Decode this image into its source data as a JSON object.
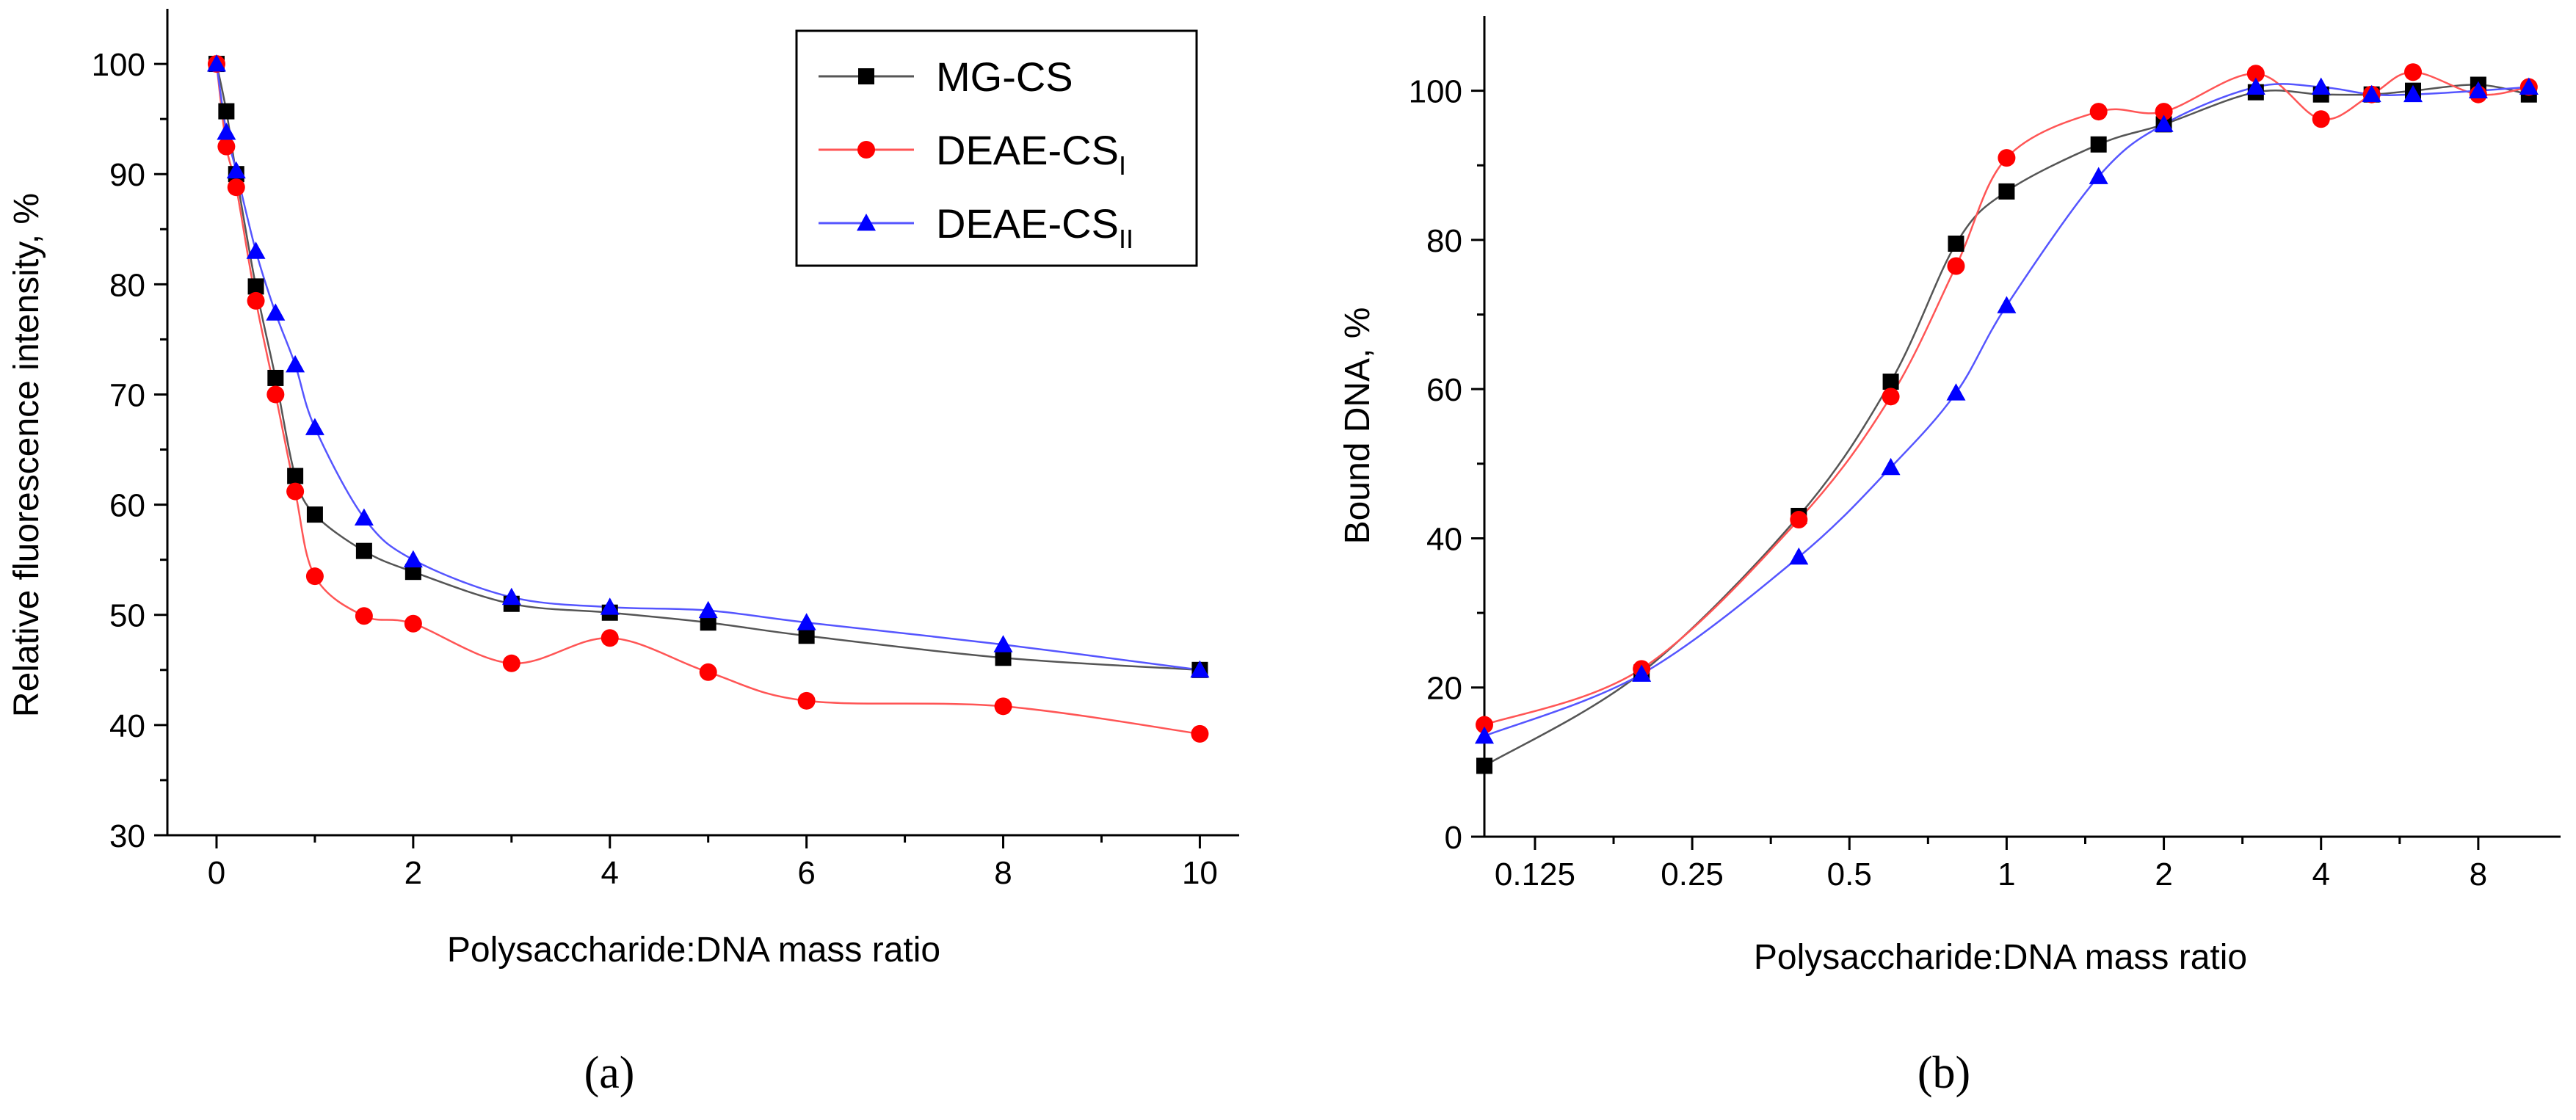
{
  "chart_data": [
    {
      "type": "line",
      "panel_label": "(a)",
      "xlabel": "Polysaccharide:DNA mass ratio",
      "ylabel": "Relative fluorescence intensity, %",
      "xlim": [
        -0.5,
        10.4
      ],
      "ylim": [
        30,
        105
      ],
      "xscale": "linear",
      "xticks": [
        0,
        2,
        4,
        6,
        8,
        10
      ],
      "xtick_labels": [
        "0",
        "2",
        "4",
        "6",
        "8",
        "10"
      ],
      "yticks": [
        30,
        40,
        50,
        60,
        70,
        80,
        90,
        100
      ],
      "ytick_labels": [
        "30",
        "40",
        "50",
        "60",
        "70",
        "80",
        "90",
        "100"
      ],
      "grid": false,
      "legend": "top-right",
      "series": [
        {
          "name": "MG-CS",
          "label_main": "MG-CS",
          "label_sub": "",
          "color": "#000000",
          "line_color": "#555555",
          "marker": "square",
          "x": [
            0,
            0.1,
            0.2,
            0.4,
            0.6,
            0.8,
            1,
            1.5,
            2,
            3,
            4,
            5,
            6,
            8,
            10
          ],
          "y": [
            100,
            95.7,
            90.0,
            79.8,
            71.5,
            62.6,
            59.1,
            55.8,
            53.9,
            51.0,
            50.2,
            49.3,
            48.1,
            46.1,
            45.0
          ]
        },
        {
          "name": "DEAE-CSI",
          "label_main": "DEAE-CS",
          "label_sub": "I",
          "color": "#ff0000",
          "line_color": "#ff5555",
          "marker": "circle",
          "x": [
            0,
            0.1,
            0.2,
            0.4,
            0.6,
            0.8,
            1,
            1.5,
            2,
            3,
            4,
            5,
            6,
            8,
            10
          ],
          "y": [
            100,
            92.5,
            88.8,
            78.5,
            70.0,
            61.2,
            53.5,
            49.9,
            49.2,
            45.6,
            47.9,
            44.8,
            42.2,
            41.7,
            39.2
          ]
        },
        {
          "name": "DEAE-CSII",
          "label_main": "DEAE-CS",
          "label_sub": "II",
          "color": "#0000ff",
          "line_color": "#5555ff",
          "marker": "triangle",
          "x": [
            0,
            0.1,
            0.2,
            0.4,
            0.6,
            0.8,
            1,
            1.5,
            2,
            3,
            4,
            5,
            6,
            8,
            10
          ],
          "y": [
            100,
            93.8,
            90.3,
            83.0,
            77.4,
            72.7,
            67.0,
            58.8,
            55.0,
            51.6,
            50.7,
            50.4,
            49.3,
            47.3,
            45.0
          ]
        }
      ]
    },
    {
      "type": "line",
      "panel_label": "(b)",
      "xlabel": "Polysaccharide:DNA mass ratio",
      "ylabel": "Bound DNA, %",
      "xlim": [
        0.1,
        11.5
      ],
      "ylim": [
        0,
        110
      ],
      "xscale": "log",
      "xticks": [
        0.125,
        0.25,
        0.5,
        1,
        2,
        4,
        8
      ],
      "xtick_labels": [
        "0.125",
        "0.25",
        "0.5",
        "1",
        "2",
        "4",
        "8"
      ],
      "yticks": [
        0,
        20,
        40,
        60,
        80,
        100
      ],
      "ytick_labels": [
        "0",
        "20",
        "40",
        "60",
        "80",
        "100"
      ],
      "grid": false,
      "legend": "none",
      "series": [
        {
          "name": "MG-CS",
          "color": "#000000",
          "line_color": "#555555",
          "marker": "square",
          "x": [
            0.1,
            0.2,
            0.4,
            0.6,
            0.8,
            1,
            1.5,
            2,
            3,
            4,
            5,
            6,
            8,
            10
          ],
          "y": [
            9.5,
            22.0,
            43.0,
            61.0,
            79.5,
            86.5,
            92.8,
            95.5,
            99.8,
            99.5,
            99.5,
            100.0,
            100.8,
            99.5
          ]
        },
        {
          "name": "DEAE-CSI",
          "color": "#ff0000",
          "line_color": "#ff5555",
          "marker": "circle",
          "x": [
            0.1,
            0.2,
            0.4,
            0.6,
            0.8,
            1,
            1.5,
            2,
            3,
            4,
            5,
            6,
            8,
            10
          ],
          "y": [
            15.0,
            22.5,
            42.5,
            59.0,
            76.5,
            91.0,
            97.2,
            97.2,
            102.3,
            96.2,
            99.5,
            102.5,
            99.5,
            100.5
          ]
        },
        {
          "name": "DEAE-CSII",
          "color": "#0000ff",
          "line_color": "#5555ff",
          "marker": "triangle",
          "x": [
            0.1,
            0.2,
            0.4,
            0.6,
            0.8,
            1,
            1.5,
            2,
            3,
            4,
            5,
            6,
            8,
            10
          ],
          "y": [
            13.5,
            21.8,
            37.5,
            49.5,
            59.5,
            71.2,
            88.5,
            95.5,
            100.5,
            100.5,
            99.5,
            99.5,
            100.0,
            100.5
          ]
        }
      ]
    }
  ]
}
